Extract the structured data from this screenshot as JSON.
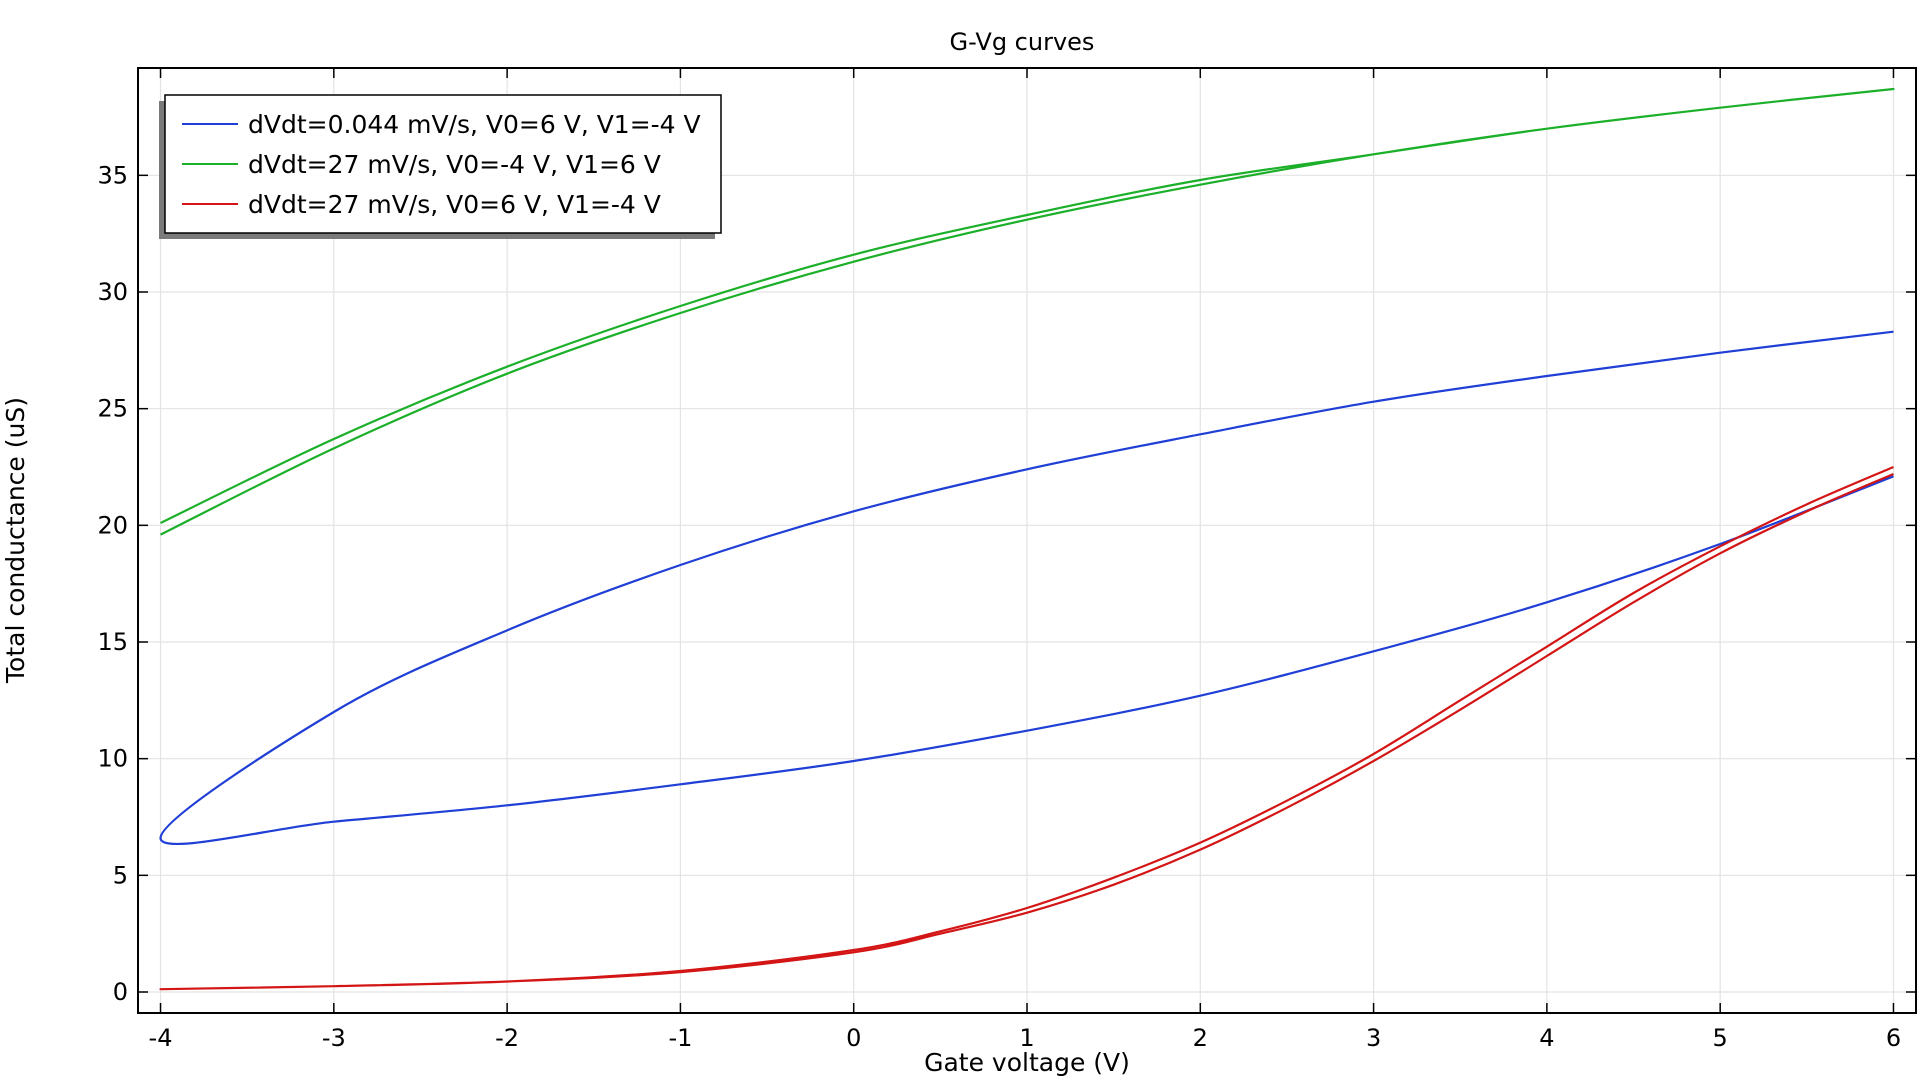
{
  "chart_data": {
    "type": "line",
    "title": "G-Vg curves",
    "xlabel": "Gate voltage (V)",
    "ylabel": "Total conductance (uS)",
    "xlim": [
      -4.13,
      6.13
    ],
    "ylim": [
      -0.9,
      39.6
    ],
    "xticks": [
      "-4",
      "-3",
      "-2",
      "-1",
      "0",
      "1",
      "2",
      "3",
      "4",
      "5",
      "6"
    ],
    "yticks": [
      "0",
      "5",
      "10",
      "15",
      "20",
      "25",
      "30",
      "35"
    ],
    "grid": true,
    "legend_position": "top-left",
    "series": [
      {
        "name": "dVdt=0.044 mV/s, V0=6 V, V1=-4 V",
        "color": "#1f3fd6",
        "x": [
          6,
          5,
          4,
          3,
          2,
          1,
          0,
          -1,
          -2,
          -3,
          -4,
          -3,
          -2,
          -1,
          0,
          1,
          2,
          3,
          4,
          5,
          6
        ],
        "y": [
          28.3,
          27.4,
          26.4,
          25.3,
          23.9,
          22.4,
          20.6,
          18.3,
          15.5,
          12.0,
          6.6,
          7.3,
          8.0,
          8.9,
          9.9,
          11.2,
          12.7,
          14.6,
          16.7,
          19.2,
          22.1
        ]
      },
      {
        "name": "dVdt=27 mV/s, V0=-4 V, V1=6 V",
        "color": "#1cb02a",
        "x": [
          -4,
          -3,
          -2,
          -1,
          0,
          1,
          2,
          3,
          4,
          5,
          6,
          5,
          4,
          3,
          2,
          1,
          0,
          -1,
          -2,
          -3,
          -4
        ],
        "y": [
          19.6,
          23.3,
          26.5,
          29.1,
          31.3,
          33.1,
          34.6,
          35.9,
          37.0,
          37.9,
          38.7,
          37.9,
          37.0,
          35.9,
          34.8,
          33.3,
          31.6,
          29.4,
          26.8,
          23.7,
          20.1
        ]
      },
      {
        "name": "dVdt=27 mV/s, V0=6 V, V1=-4 V",
        "color": "#d41515",
        "x": [
          6,
          5.5,
          5,
          4.5,
          4,
          3.5,
          3,
          2.5,
          2,
          1.5,
          1,
          0.5,
          0,
          -1,
          -2,
          -3,
          -4,
          -3,
          -2,
          -1,
          0,
          0.5,
          1,
          1.5,
          2,
          2.5,
          3,
          3.5,
          4,
          4.5,
          5,
          5.5,
          6
        ],
        "y": [
          22.5,
          20.9,
          19.1,
          17.1,
          14.8,
          12.5,
          10.2,
          8.2,
          6.4,
          4.9,
          3.6,
          2.6,
          1.8,
          0.9,
          0.45,
          0.25,
          0.12,
          0.25,
          0.45,
          0.85,
          1.7,
          2.5,
          3.4,
          4.6,
          6.1,
          7.9,
          9.9,
          12.1,
          14.4,
          16.7,
          18.8,
          20.6,
          22.2
        ]
      }
    ]
  }
}
